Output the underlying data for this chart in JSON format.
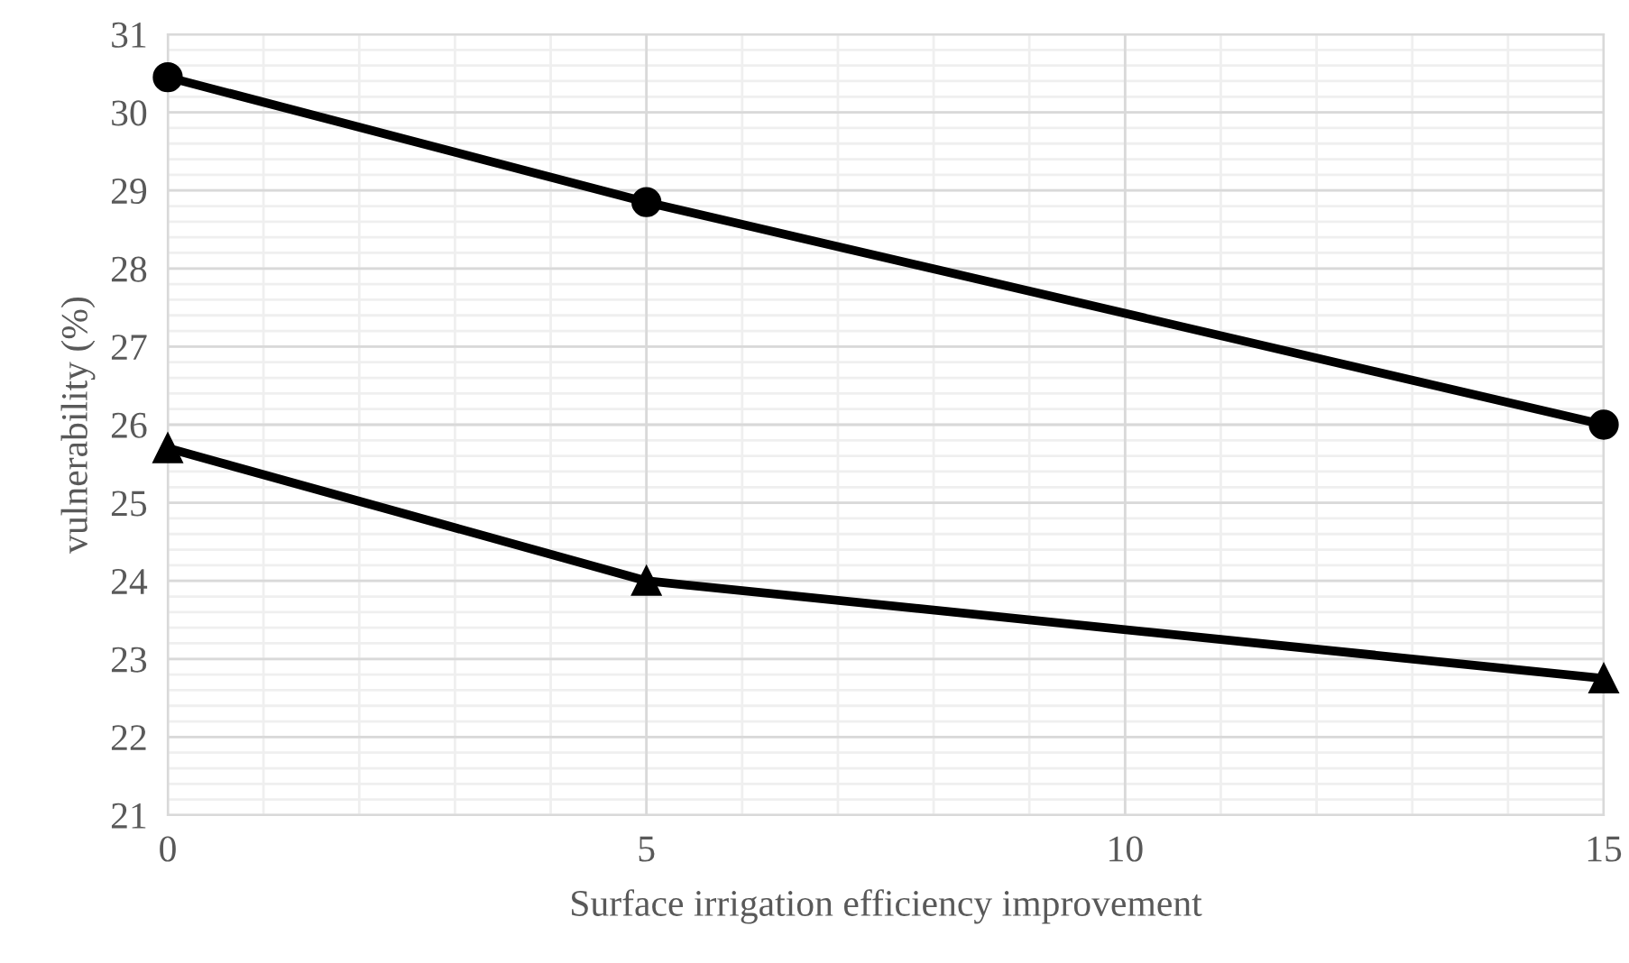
{
  "chart_data": {
    "type": "line",
    "xlabel": "Surface irrigation efficiency improvement",
    "ylabel": "vulnerability (%)",
    "x": [
      0,
      5,
      15
    ],
    "series": [
      {
        "color": "#000000",
        "values": [
          30.45,
          28.85,
          26.0
        ],
        "marker": "circle"
      },
      {
        "color": "#000000",
        "values": [
          25.7,
          24.0,
          22.75
        ],
        "marker": "triangle"
      }
    ],
    "xlim": [
      0,
      15
    ],
    "xticks": [
      0,
      5,
      10,
      15
    ],
    "ylim": [
      21,
      31
    ],
    "yticks": [
      21,
      22,
      23,
      24,
      25,
      26,
      27,
      28,
      29,
      30,
      31
    ],
    "grid": true,
    "line_style": "solid"
  }
}
